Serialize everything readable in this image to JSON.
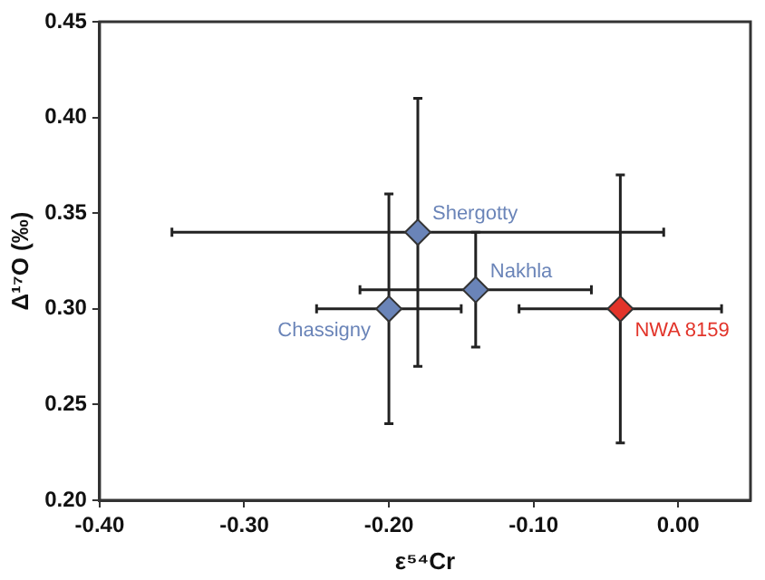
{
  "chart_data": {
    "type": "scatter",
    "xlabel": "ε⁵⁴Cr",
    "ylabel": "Δ¹⁷O (‰)",
    "xlim": [
      -0.4,
      0.05
    ],
    "ylim": [
      0.2,
      0.45
    ],
    "xticks": [
      {
        "value": -0.4,
        "label": "-0.40"
      },
      {
        "value": -0.3,
        "label": "-0.30"
      },
      {
        "value": -0.2,
        "label": "-0.20"
      },
      {
        "value": -0.1,
        "label": "-0.10"
      },
      {
        "value": 0,
        "label": "0.00"
      }
    ],
    "yticks": [
      {
        "value": 0.2,
        "label": "0.20"
      },
      {
        "value": 0.25,
        "label": "0.25"
      },
      {
        "value": 0.3,
        "label": "0.30"
      },
      {
        "value": 0.35,
        "label": "0.35"
      },
      {
        "value": 0.4,
        "label": "0.40"
      },
      {
        "value": 0.45,
        "label": "0.45"
      }
    ],
    "grid": false,
    "legend": false,
    "marker": "diamond",
    "series": [
      {
        "name": "Shergotty",
        "color": "#6a84b8",
        "x": [
          -0.18
        ],
        "values": [
          0.34
        ],
        "errors": [
          0.07
        ],
        "xerrors": [
          0.17
        ]
      },
      {
        "name": "Nakhla",
        "color": "#6a84b8",
        "x": [
          -0.14
        ],
        "values": [
          0.31
        ],
        "errors": [
          0.03
        ],
        "xerrors": [
          0.08
        ]
      },
      {
        "name": "Chassigny",
        "color": "#6a84b8",
        "x": [
          -0.2
        ],
        "values": [
          0.3
        ],
        "errors": [
          0.06
        ],
        "xerrors": [
          0.05
        ]
      },
      {
        "name": "NWA 8159",
        "color": "#e2342a",
        "x": [
          -0.04
        ],
        "values": [
          0.3
        ],
        "errors": [
          0.07
        ],
        "xerrors": [
          0.07
        ]
      }
    ]
  }
}
